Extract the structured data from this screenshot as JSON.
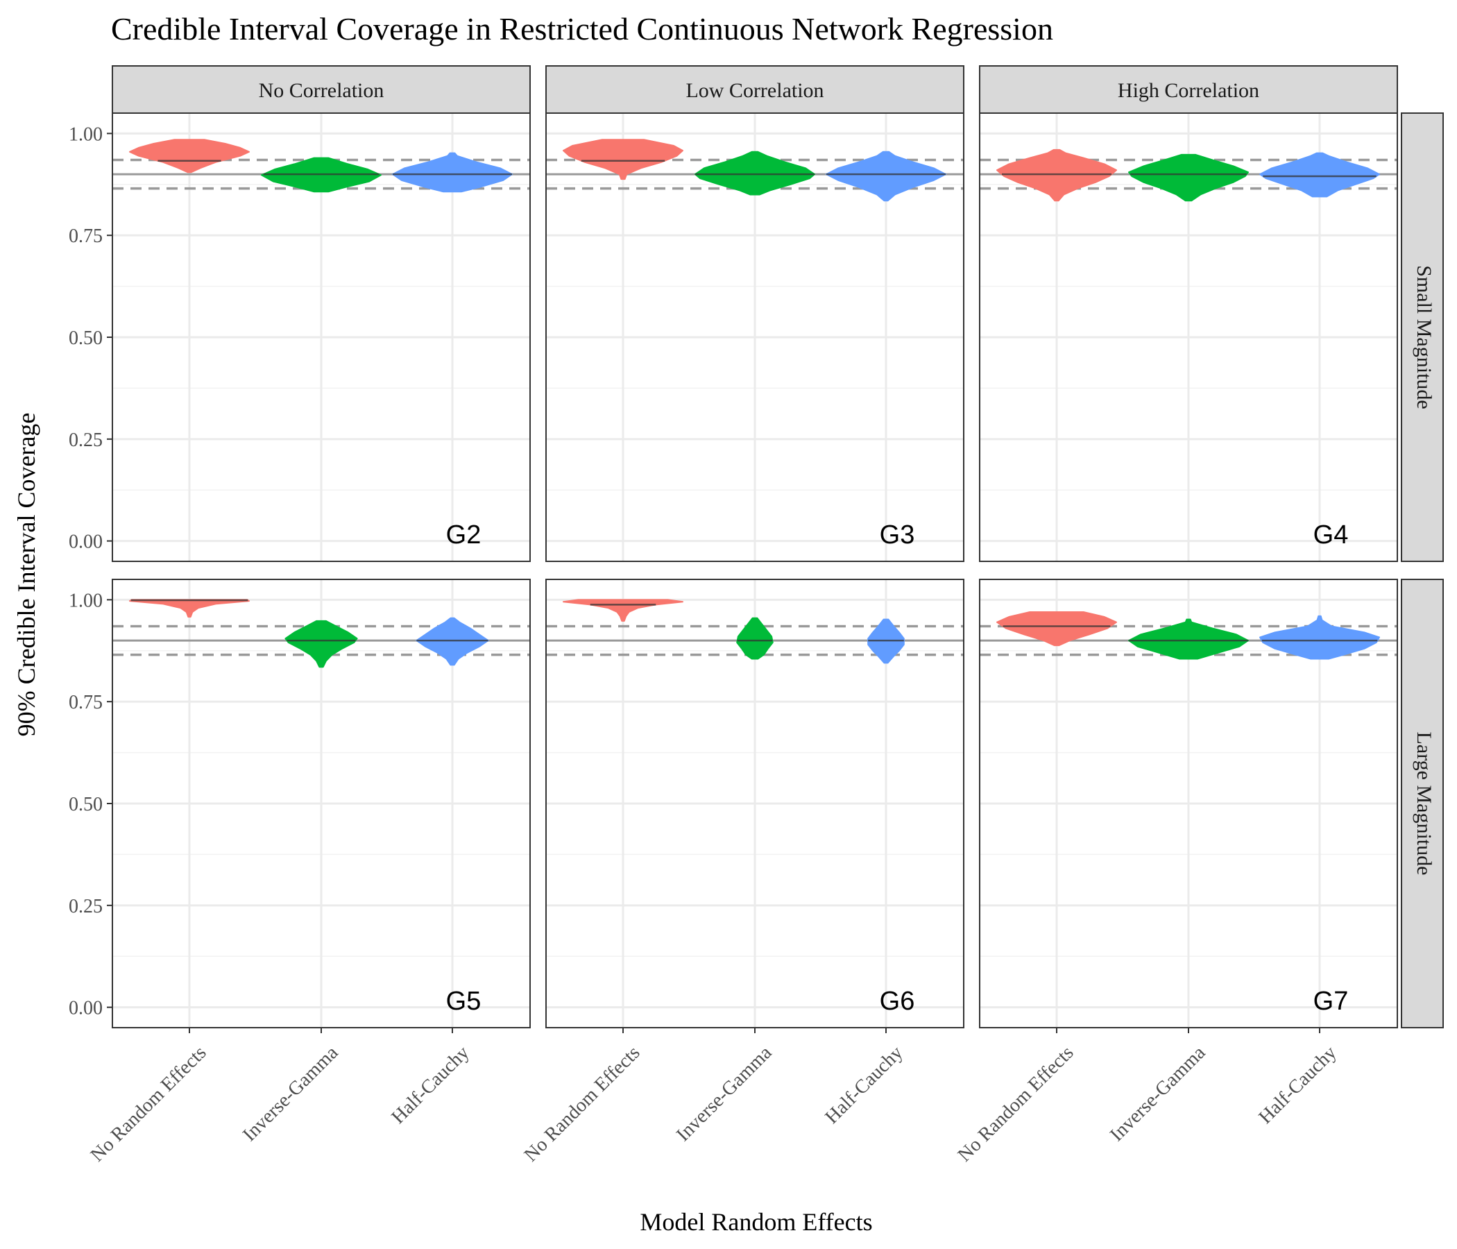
{
  "chart_data": {
    "type": "violin",
    "title": "Credible Interval Coverage in Restricted Continuous Network Regression",
    "xlabel": "Model Random Effects",
    "ylabel": "90% Credible Interval Coverage",
    "ylim": [
      -0.05,
      1.05
    ],
    "yticks": [
      "0.00",
      "0.25",
      "0.50",
      "0.75",
      "1.00"
    ],
    "ytick_values": [
      0,
      0.25,
      0.5,
      0.75,
      1
    ],
    "categories": [
      "No Random Effects",
      "Inverse-Gamma",
      "Half-Cauchy"
    ],
    "colors": [
      "#F8766D",
      "#00BA38",
      "#619CFF"
    ],
    "column_facets": [
      "No Correlation",
      "Low Correlation",
      "High Correlation"
    ],
    "row_facets": [
      "Small Magnitude",
      "Large Magnitude"
    ],
    "reference_lines": {
      "nominal": 0.9,
      "lower": 0.865,
      "upper": 0.935
    },
    "grid": true,
    "panels": [
      {
        "label": "G2",
        "row": 0,
        "col": 0,
        "violins": [
          {
            "category": "No Random Effects",
            "median": 0.933,
            "profile": [
              [
                0.905,
                0.03
              ],
              [
                0.915,
                0.18
              ],
              [
                0.93,
                0.45
              ],
              [
                0.945,
                0.85
              ],
              [
                0.955,
                1.0
              ],
              [
                0.965,
                0.85
              ],
              [
                0.975,
                0.6
              ],
              [
                0.985,
                0.25
              ]
            ]
          },
          {
            "category": "Inverse-Gamma",
            "median": 0.9,
            "profile": [
              [
                0.857,
                0.12
              ],
              [
                0.868,
                0.4
              ],
              [
                0.882,
                0.8
              ],
              [
                0.898,
                1.0
              ],
              [
                0.912,
                0.78
              ],
              [
                0.925,
                0.45
              ],
              [
                0.94,
                0.12
              ]
            ]
          },
          {
            "category": "Half-Cauchy",
            "median": 0.9,
            "profile": [
              [
                0.857,
                0.15
              ],
              [
                0.868,
                0.45
              ],
              [
                0.885,
                0.85
              ],
              [
                0.9,
                1.0
              ],
              [
                0.915,
                0.8
              ],
              [
                0.93,
                0.4
              ],
              [
                0.945,
                0.08
              ],
              [
                0.952,
                0.04
              ]
            ]
          }
        ]
      },
      {
        "label": "G3",
        "row": 0,
        "col": 1,
        "violins": [
          {
            "category": "No Random Effects",
            "median": 0.933,
            "profile": [
              [
                0.888,
                0.03
              ],
              [
                0.9,
                0.06
              ],
              [
                0.915,
                0.3
              ],
              [
                0.93,
                0.65
              ],
              [
                0.945,
                0.9
              ],
              [
                0.958,
                1.0
              ],
              [
                0.97,
                0.85
              ],
              [
                0.985,
                0.35
              ]
            ]
          },
          {
            "category": "Inverse-Gamma",
            "median": 0.9,
            "profile": [
              [
                0.85,
                0.08
              ],
              [
                0.86,
                0.25
              ],
              [
                0.875,
                0.6
              ],
              [
                0.89,
                0.92
              ],
              [
                0.9,
                1.0
              ],
              [
                0.915,
                0.85
              ],
              [
                0.93,
                0.5
              ],
              [
                0.945,
                0.2
              ],
              [
                0.955,
                0.05
              ]
            ]
          },
          {
            "category": "Half-Cauchy",
            "median": 0.9,
            "profile": [
              [
                0.835,
                0.03
              ],
              [
                0.85,
                0.15
              ],
              [
                0.868,
                0.45
              ],
              [
                0.885,
                0.8
              ],
              [
                0.9,
                1.0
              ],
              [
                0.915,
                0.8
              ],
              [
                0.93,
                0.45
              ],
              [
                0.945,
                0.15
              ],
              [
                0.955,
                0.05
              ]
            ]
          }
        ]
      },
      {
        "label": "G4",
        "row": 0,
        "col": 2,
        "violins": [
          {
            "category": "No Random Effects",
            "median": 0.9,
            "profile": [
              [
                0.835,
                0.03
              ],
              [
                0.85,
                0.12
              ],
              [
                0.865,
                0.35
              ],
              [
                0.88,
                0.65
              ],
              [
                0.895,
                0.88
              ],
              [
                0.91,
                1.0
              ],
              [
                0.925,
                0.8
              ],
              [
                0.94,
                0.45
              ],
              [
                0.952,
                0.15
              ],
              [
                0.96,
                0.05
              ]
            ]
          },
          {
            "category": "Inverse-Gamma",
            "median": 0.9,
            "profile": [
              [
                0.835,
                0.05
              ],
              [
                0.85,
                0.2
              ],
              [
                0.865,
                0.45
              ],
              [
                0.88,
                0.75
              ],
              [
                0.895,
                0.95
              ],
              [
                0.905,
                1.0
              ],
              [
                0.92,
                0.75
              ],
              [
                0.935,
                0.4
              ],
              [
                0.948,
                0.12
              ]
            ]
          },
          {
            "category": "Half-Cauchy",
            "median": 0.895,
            "profile": [
              [
                0.845,
                0.12
              ],
              [
                0.86,
                0.3
              ],
              [
                0.875,
                0.6
              ],
              [
                0.89,
                0.9
              ],
              [
                0.9,
                1.0
              ],
              [
                0.915,
                0.8
              ],
              [
                0.93,
                0.45
              ],
              [
                0.945,
                0.15
              ],
              [
                0.952,
                0.05
              ]
            ]
          }
        ]
      },
      {
        "label": "G5",
        "row": 1,
        "col": 0,
        "violins": [
          {
            "category": "No Random Effects",
            "median": 0.999,
            "profile": [
              [
                0.958,
                0.02
              ],
              [
                0.97,
                0.05
              ],
              [
                0.98,
                0.15
              ],
              [
                0.99,
                0.45
              ],
              [
                0.997,
                1.0
              ],
              [
                1.0,
                0.97
              ]
            ]
          },
          {
            "category": "Inverse-Gamma",
            "median": 0.9,
            "profile": [
              [
                0.835,
                0.03
              ],
              [
                0.85,
                0.08
              ],
              [
                0.865,
                0.18
              ],
              [
                0.88,
                0.35
              ],
              [
                0.895,
                0.55
              ],
              [
                0.905,
                0.6
              ],
              [
                0.92,
                0.45
              ],
              [
                0.935,
                0.25
              ],
              [
                0.948,
                0.08
              ]
            ]
          },
          {
            "category": "Half-Cauchy",
            "median": 0.9,
            "profile": [
              [
                0.84,
                0.03
              ],
              [
                0.855,
                0.1
              ],
              [
                0.87,
                0.25
              ],
              [
                0.885,
                0.45
              ],
              [
                0.9,
                0.6
              ],
              [
                0.915,
                0.45
              ],
              [
                0.93,
                0.3
              ],
              [
                0.945,
                0.12
              ],
              [
                0.955,
                0.03
              ]
            ]
          }
        ]
      },
      {
        "label": "G6",
        "row": 1,
        "col": 1,
        "violins": [
          {
            "category": "No Random Effects",
            "median": 0.988,
            "profile": [
              [
                0.948,
                0.02
              ],
              [
                0.96,
                0.05
              ],
              [
                0.97,
                0.1
              ],
              [
                0.98,
                0.25
              ],
              [
                0.988,
                0.55
              ],
              [
                0.995,
                1.0
              ],
              [
                1.0,
                0.75
              ]
            ]
          },
          {
            "category": "Inverse-Gamma",
            "median": 0.9,
            "profile": [
              [
                0.855,
                0.05
              ],
              [
                0.865,
                0.15
              ],
              [
                0.88,
                0.22
              ],
              [
                0.895,
                0.3
              ],
              [
                0.91,
                0.28
              ],
              [
                0.925,
                0.2
              ],
              [
                0.94,
                0.12
              ],
              [
                0.955,
                0.04
              ]
            ]
          },
          {
            "category": "Half-Cauchy",
            "median": 0.9,
            "profile": [
              [
                0.845,
                0.03
              ],
              [
                0.86,
                0.12
              ],
              [
                0.875,
                0.22
              ],
              [
                0.89,
                0.3
              ],
              [
                0.905,
                0.3
              ],
              [
                0.92,
                0.22
              ],
              [
                0.935,
                0.13
              ],
              [
                0.952,
                0.04
              ]
            ]
          }
        ]
      },
      {
        "label": "G7",
        "row": 1,
        "col": 2,
        "violins": [
          {
            "category": "No Random Effects",
            "median": 0.935,
            "profile": [
              [
                0.888,
                0.04
              ],
              [
                0.9,
                0.22
              ],
              [
                0.915,
                0.55
              ],
              [
                0.93,
                0.85
              ],
              [
                0.945,
                1.0
              ],
              [
                0.958,
                0.8
              ],
              [
                0.97,
                0.45
              ]
            ]
          },
          {
            "category": "Inverse-Gamma",
            "median": 0.9,
            "profile": [
              [
                0.855,
                0.15
              ],
              [
                0.87,
                0.5
              ],
              [
                0.885,
                0.85
              ],
              [
                0.9,
                1.0
              ],
              [
                0.915,
                0.8
              ],
              [
                0.93,
                0.4
              ],
              [
                0.945,
                0.05
              ],
              [
                0.952,
                0.03
              ]
            ]
          },
          {
            "category": "Half-Cauchy",
            "median": 0.9,
            "profile": [
              [
                0.855,
                0.15
              ],
              [
                0.865,
                0.4
              ],
              [
                0.88,
                0.75
              ],
              [
                0.895,
                0.95
              ],
              [
                0.908,
                1.0
              ],
              [
                0.92,
                0.75
              ],
              [
                0.935,
                0.2
              ],
              [
                0.95,
                0.04
              ],
              [
                0.96,
                0.02
              ]
            ]
          }
        ]
      }
    ]
  }
}
